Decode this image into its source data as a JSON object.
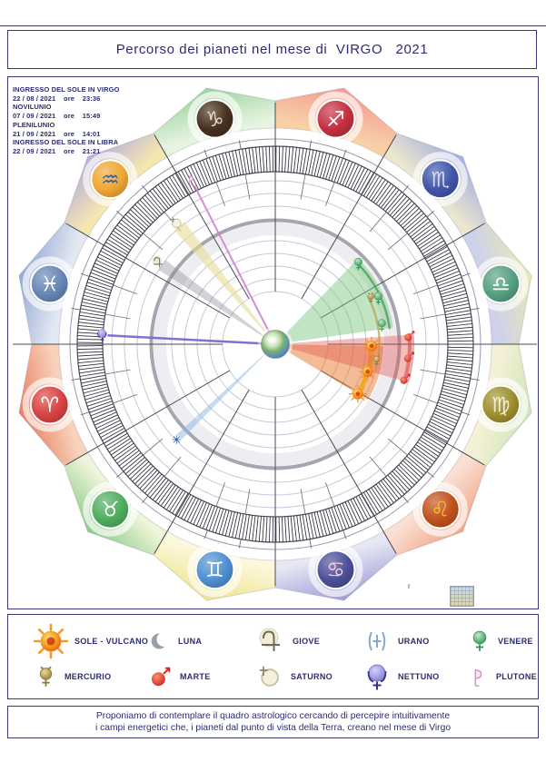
{
  "page": {
    "title": "Percorso dei pianeti nel mese di  VIRGO   2021",
    "info_lines": [
      "INGRESSO DEL SOLE IN VIRGO",
      "22 / 08 / 2021    ore    23:36",
      "NOVILUNIO",
      "07 / 09 / 2021    ore    15:49",
      "PLENILUNIO",
      "21 / 09 / 2021    ore    14:01",
      "INGRESSO DEL SOLE IN LIBRA",
      "22 / 09 / 2021    ore    21:21"
    ],
    "corner_mark": "r",
    "footer_lines": [
      "Proponiamo di contemplare il quadro astrologico cercando di percepire intuitivamente",
      "i campi energetici che, i pianeti dal punto di vista della Terra, creano nel mese di Virgo"
    ],
    "accent_color": "#2c2c72"
  },
  "legend": {
    "rows": [
      [
        {
          "key": "sun",
          "label": "SOLE - VULCANO",
          "size": 38
        },
        {
          "key": "moon",
          "label": "LUNA",
          "size": 26
        },
        {
          "key": "jupiter",
          "label": "GIOVE",
          "size": 32
        },
        {
          "key": "uranus",
          "label": "URANO",
          "size": 32
        },
        {
          "key": "venus",
          "label": "VENERE",
          "size": 26
        }
      ],
      [
        {
          "key": "mercury",
          "label": "MERCURIO",
          "size": 27
        },
        {
          "key": "mars",
          "label": "MARTE",
          "size": 28
        },
        {
          "key": "saturn",
          "label": "SATURNO",
          "size": 30
        },
        {
          "key": "neptune",
          "label": "NETTUNO",
          "size": 32
        },
        {
          "key": "pluto",
          "label": "PLUTONE",
          "size": 24
        }
      ]
    ]
  },
  "chart_data": {
    "type": "zodiac-wheel",
    "center_body": "Terra",
    "signs": [
      {
        "name": "aries",
        "glyph": "♈",
        "angle": 195,
        "icon": "#d94343",
        "glyphColor": "#ffffff",
        "tip": "#e87e62",
        "base": "#f8d2bc"
      },
      {
        "name": "taurus",
        "glyph": "♉",
        "angle": 225,
        "icon": "#4fae5e",
        "glyphColor": "#ffffff",
        "tip": "#8ecb8b",
        "base": "#eef5da"
      },
      {
        "name": "gemini",
        "glyph": "♊",
        "angle": 255,
        "icon": "#4f90d2",
        "glyphColor": "#ffffff",
        "tip": "#eee38b",
        "base": "#fdf7dc"
      },
      {
        "name": "cancer",
        "glyph": "♋",
        "angle": 285,
        "icon": "#4c4f9a",
        "glyphColor": "#f2cfe2",
        "tip": "#9d9dd4",
        "base": "#e7e7f5"
      },
      {
        "name": "leo",
        "glyph": "♌",
        "angle": 315,
        "icon": "#c2511d",
        "glyphColor": "#f6c81e",
        "tip": "#f1a686",
        "base": "#fadfd3"
      },
      {
        "name": "virgo",
        "glyph": "♍",
        "angle": 345,
        "icon": "#9d902d",
        "glyphColor": "#f3edd2",
        "tip": "#cfe5b6",
        "base": "#f5f1d8"
      },
      {
        "name": "libra",
        "glyph": "♎",
        "angle": 15,
        "icon": "#57a083",
        "glyphColor": "#ffffff",
        "tip": "#ece7b4",
        "base": "#cdd1eb"
      },
      {
        "name": "scorpio",
        "glyph": "♏",
        "angle": 45,
        "icon": "#4056aa",
        "glyphColor": "#d9dcf4",
        "tip": "#a3afdf",
        "base": "#eae6cf"
      },
      {
        "name": "sagittarius",
        "glyph": "♐",
        "angle": 75,
        "icon": "#c43040",
        "glyphColor": "#ffffff",
        "tip": "#f29b93",
        "base": "#f8d0a6"
      },
      {
        "name": "capricorn",
        "glyph": "♑",
        "angle": 105,
        "icon": "#47311f",
        "glyphColor": "#ead9c4",
        "tip": "#9bd49d",
        "base": "#e7f4e1"
      },
      {
        "name": "aquarius",
        "glyph": "♒",
        "angle": 135,
        "icon": "#efa834",
        "glyphColor": "#315fb2",
        "tip": "#b8afdb",
        "base": "#f4e7b0"
      },
      {
        "name": "pisces",
        "glyph": "♓",
        "angle": 165,
        "icon": "#6787b7",
        "glyphColor": "#ffffff",
        "tip": "#94aad3",
        "base": "#e3e8f3"
      }
    ],
    "planets": [
      {
        "key": "venus",
        "fan": [
          8,
          46
        ],
        "fanR": 131,
        "fill": "rgba(118,198,120,0.45)",
        "arc": {
          "r": 127,
          "from": 8,
          "to": 46,
          "stroke": "rgba(62,158,84,0.75)",
          "w": 2.5
        },
        "markers": [
          {
            "a": 44,
            "r": 127,
            "s": 0.5
          },
          {
            "a": 24,
            "r": 124,
            "s": 0.5
          },
          {
            "a": 10,
            "r": 119,
            "s": 0.5
          }
        ]
      },
      {
        "key": "sun",
        "fan": [
          -31,
          -1
        ],
        "fanR": 119,
        "fill": "rgba(232,122,48,0.5)",
        "arc": {
          "r": 106,
          "from": -31,
          "to": -1,
          "stroke": "rgba(243,164,30,0.9)",
          "w": 5
        },
        "markers": [
          {
            "a": -31,
            "r": 106,
            "s": 0.62
          },
          {
            "a": -16.5,
            "r": 106,
            "s": 0.62
          },
          {
            "a": -1,
            "r": 106,
            "s": 0.62
          }
        ]
      },
      {
        "key": "mars",
        "fan": [
          -16,
          4
        ],
        "fanR": 153,
        "fill": "rgba(226,80,74,0.38)",
        "arc": {
          "r": 148,
          "from": -16,
          "to": 4,
          "stroke": "rgba(214,62,62,0.55)",
          "w": 4
        },
        "markers": [
          {
            "a": 3.5,
            "r": 148,
            "s": 0.48
          },
          {
            "a": -5.5,
            "r": 148,
            "s": 0.48
          },
          {
            "a": -15,
            "r": 148,
            "s": 0.48
          }
        ]
      },
      {
        "key": "mercury",
        "arc": {
          "r": 115,
          "from": -9,
          "to": 26,
          "stroke": "rgba(198,160,52,0.7)",
          "w": 2
        },
        "markers": [
          {
            "a": 26,
            "r": 117,
            "s": 0.45
          },
          {
            "a": -9,
            "r": 113,
            "s": 0.45
          }
        ]
      },
      {
        "key": "saturn",
        "fan": [
          126.5,
          131.5
        ],
        "fanR": 168,
        "fill": "rgba(230,220,150,0.6)",
        "markers": [
          {
            "a": 129,
            "r": 172,
            "s": 0.5
          }
        ]
      },
      {
        "key": "jupiter",
        "fan": [
          142.5,
          147.5
        ],
        "fanR": 152,
        "fill": "rgba(134,134,146,0.38)",
        "markers": [
          {
            "a": 145,
            "r": 157,
            "s": 0.5
          }
        ]
      },
      {
        "key": "pluto",
        "line": {
          "a": 117,
          "r": 196,
          "stroke": "rgba(214,128,204,0.9)",
          "w": 2
        },
        "markers": [
          {
            "a": 117,
            "r": 203,
            "s": 0.42
          }
        ]
      },
      {
        "key": "neptune",
        "line": {
          "a": 177,
          "r": 185,
          "stroke": "rgba(120,106,206,0.95)",
          "w": 2.5
        },
        "markers": [
          {
            "a": 177,
            "r": 191,
            "s": 0.5
          }
        ]
      },
      {
        "key": "uranus_star",
        "fan": [
          222.5,
          225.5
        ],
        "fanR": 147,
        "fill": "rgba(138,184,232,0.5)",
        "markers": [
          {
            "a": 224,
            "r": 151,
            "s": 0.5
          }
        ]
      }
    ],
    "rings": {
      "thin": [
        58,
        72,
        86,
        100,
        114,
        152,
        166,
        180
      ],
      "thinColor": "#c8c8d6",
      "shade": {
        "r": 127,
        "w": 14,
        "color": "#ededf2"
      },
      "thick": {
        "r": 136.5,
        "w": 4,
        "color": "#a6a6b0"
      },
      "outer": {
        "r": 226,
        "color": "#9a9aa8"
      },
      "band": {
        "inner": 190,
        "outer": 218,
        "ticks": 365,
        "circleColor": "#4a4a58",
        "tickColor": "#2e2e3a"
      }
    },
    "axes": {
      "boundary_r": [
        58,
        266
      ],
      "axis_r": [
        58,
        289
      ],
      "decan_inner": [
        162,
        190
      ],
      "decan_outer": [
        218,
        228
      ]
    },
    "petals": {
      "base": 238,
      "shoulder": 268,
      "tip": 292,
      "iconR": 257
    },
    "earth": {
      "r": 15.5
    }
  }
}
